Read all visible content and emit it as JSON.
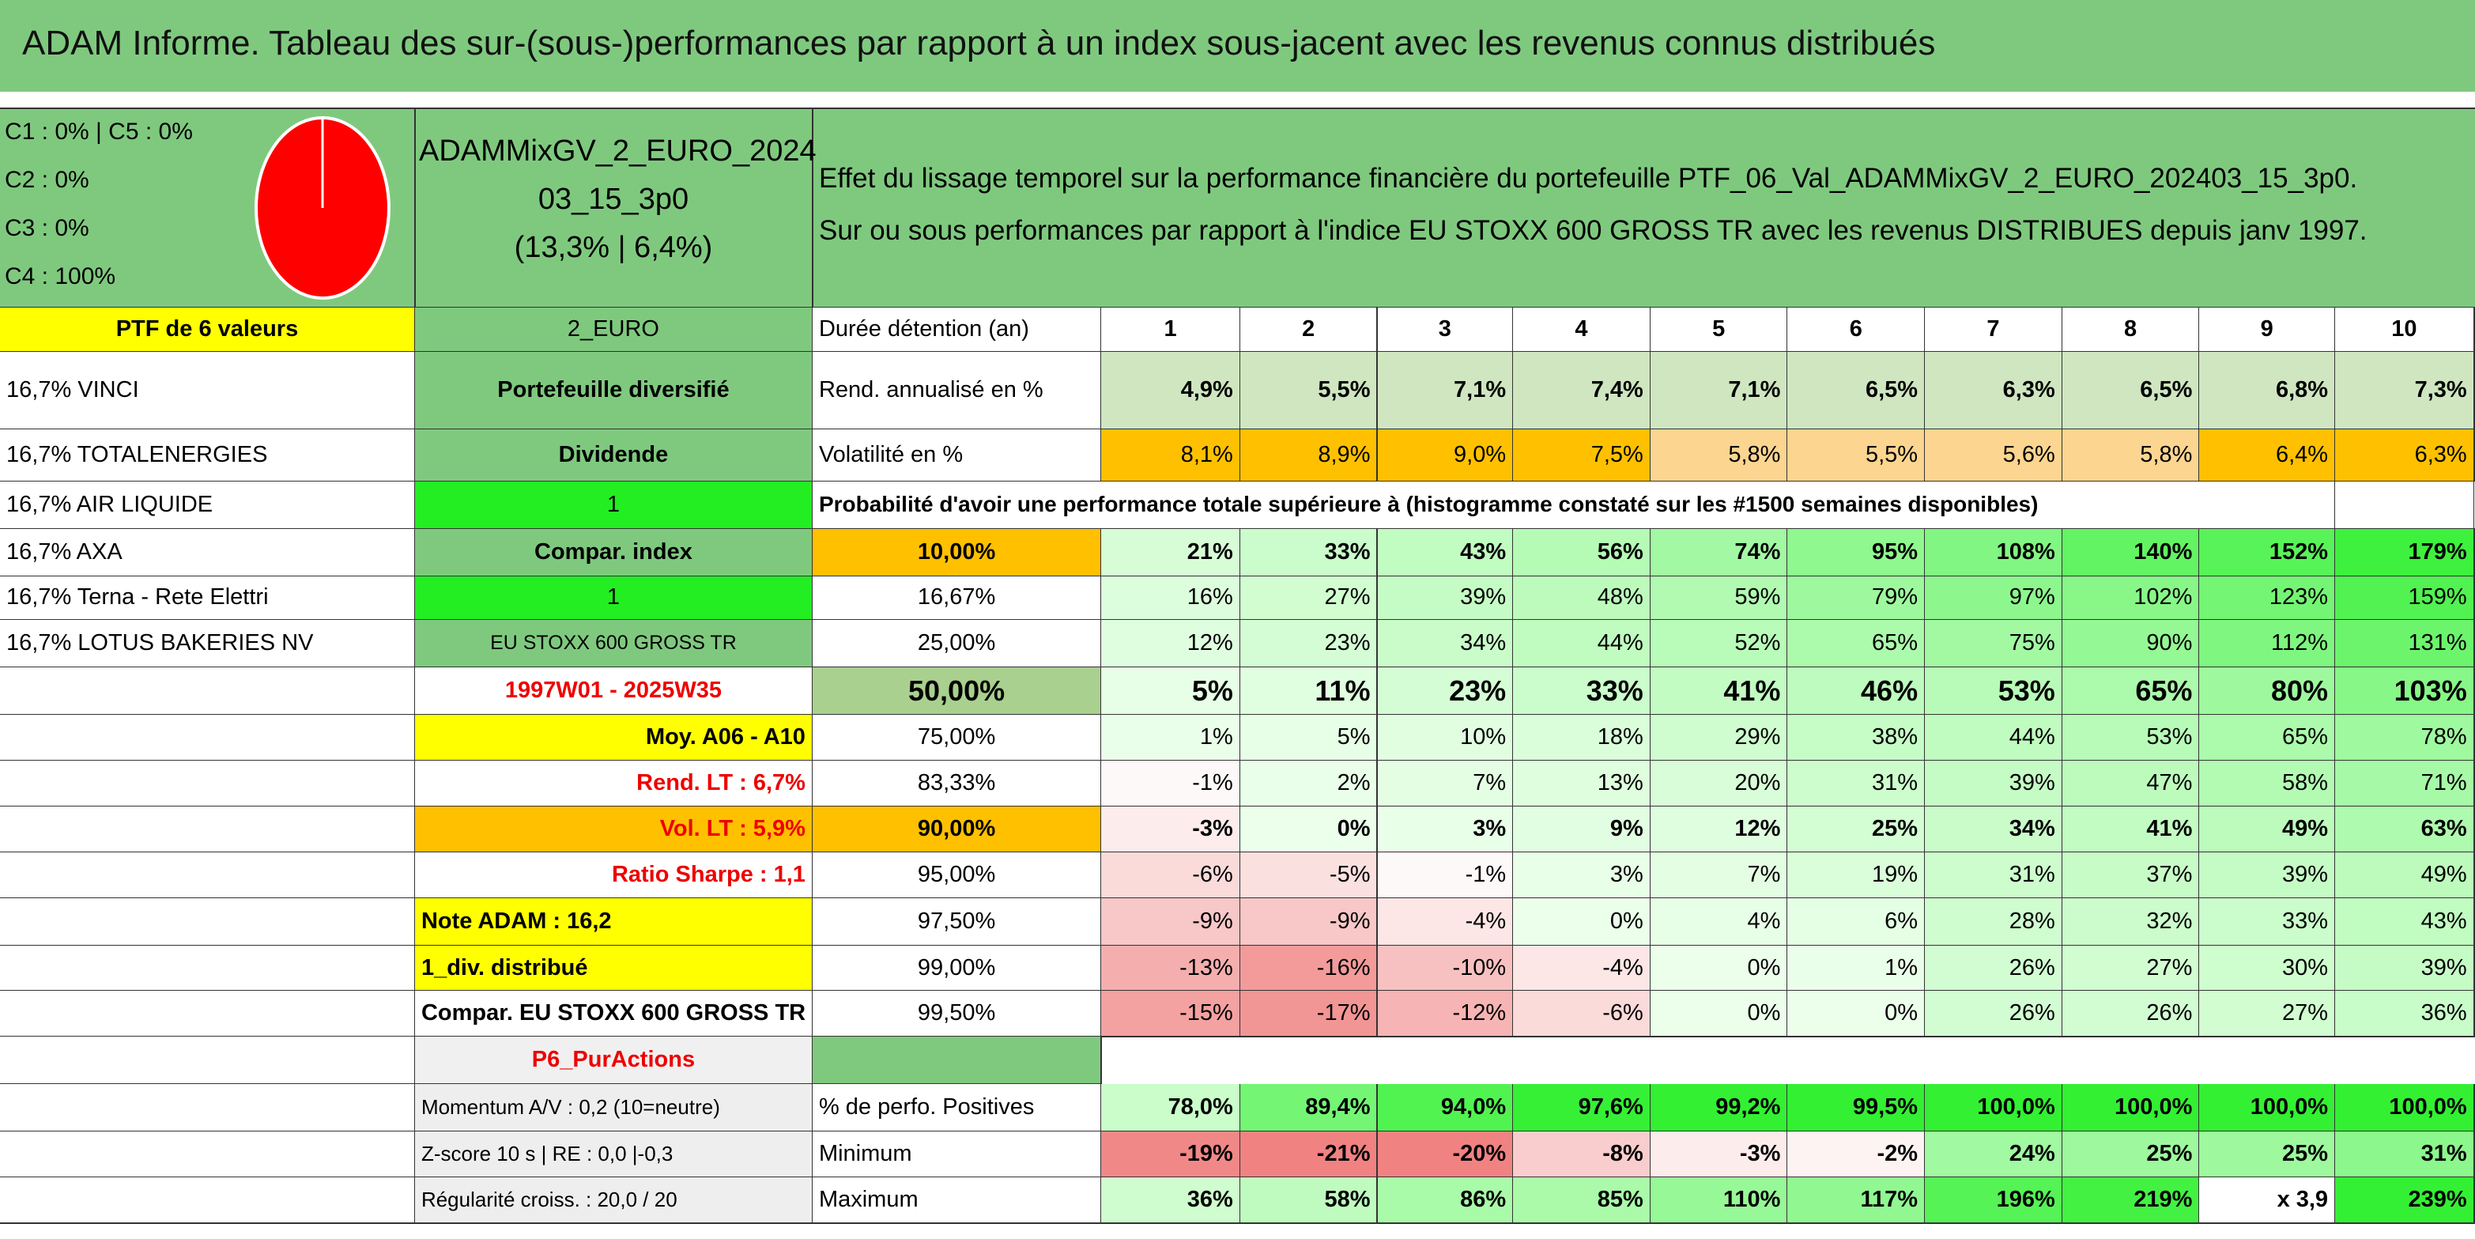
{
  "header": {
    "title": "ADAM Informe. Tableau des sur-(sous-)performances par rapport à un index sous-jacent avec les revenus connus distribués"
  },
  "summary": {
    "allocation": [
      "C1 : 0% | C5 : 0%",
      "C2 : 0%",
      "C3 : 0%",
      "C4 : 100%"
    ],
    "portfolio_name": [
      "ADAMMixGV_2_EURO_2024",
      "03_15_3p0",
      "(13,3% | 6,4%)"
    ],
    "description": [
      "Effet du lissage temporel sur la performance financière du portefeuille PTF_06_Val_ADAMMixGV_2_EURO_202403_15_3p0.",
      "Sur ou sous performances par rapport à l'indice EU STOXX 600 GROSS TR avec les revenus DISTRIBUES depuis janv 1997."
    ]
  },
  "holdings": {
    "title": "PTF de 6 valeurs",
    "items": [
      "16,7% VINCI",
      "16,7% TOTALENERGIES",
      "16,7% AIR LIQUIDE",
      "16,7% AXA",
      "16,7% Terna - Rete Elettri",
      "16,7% LOTUS BAKERIES NV"
    ]
  },
  "info": [
    "2_EURO",
    "Portefeuille diversifié",
    "Dividende",
    "1",
    "Compar. index",
    "1",
    "EU STOXX 600 GROSS TR",
    "1997W01 - 2025W35",
    "Moy. A06 - A10",
    "Rend. LT : 6,7%",
    "Vol. LT : 5,9%",
    "Ratio Sharpe : 1,1",
    "Note ADAM : 16,2",
    "1_div. distribué",
    "Compar. EU STOXX 600 GROSS TR",
    "P6_PurActions",
    "Momentum A/V : 0,2 (10=neutre)",
    "Z-score 10 s | RE : 0,0 |-0,3",
    "Régularité croiss. : 20,0 / 20"
  ],
  "table": {
    "durations_label": "Durée détention (an)",
    "durations": [
      1,
      2,
      3,
      4,
      5,
      6,
      7,
      8,
      9,
      10
    ],
    "rows": [
      {
        "label": "Rend. annualisé en %",
        "values": [
          "4,9%",
          "5,5%",
          "7,1%",
          "7,4%",
          "7,1%",
          "6,5%",
          "6,3%",
          "6,5%",
          "6,8%",
          "7,3%"
        ]
      },
      {
        "label": "Volatilité en %",
        "values": [
          "8,1%",
          "8,9%",
          "9,0%",
          "7,5%",
          "5,8%",
          "5,5%",
          "5,6%",
          "5,8%",
          "6,4%",
          "6,3%"
        ]
      }
    ],
    "probability_title": "Probabilité d'avoir une performance totale supérieure à (histogramme constaté sur les #1500 semaines disponibles)",
    "quantiles": [
      {
        "label": "10,00%",
        "values": [
          "21%",
          "33%",
          "43%",
          "56%",
          "74%",
          "95%",
          "108%",
          "140%",
          "152%",
          "179%"
        ]
      },
      {
        "label": "16,67%",
        "values": [
          "16%",
          "27%",
          "39%",
          "48%",
          "59%",
          "79%",
          "97%",
          "102%",
          "123%",
          "159%"
        ]
      },
      {
        "label": "25,00%",
        "values": [
          "12%",
          "23%",
          "34%",
          "44%",
          "52%",
          "65%",
          "75%",
          "90%",
          "112%",
          "131%"
        ]
      },
      {
        "label": "50,00%",
        "values": [
          "5%",
          "11%",
          "23%",
          "33%",
          "41%",
          "46%",
          "53%",
          "65%",
          "80%",
          "103%"
        ]
      },
      {
        "label": "75,00%",
        "values": [
          "1%",
          "5%",
          "10%",
          "18%",
          "29%",
          "38%",
          "44%",
          "53%",
          "65%",
          "78%"
        ]
      },
      {
        "label": "83,33%",
        "values": [
          "-1%",
          "2%",
          "7%",
          "13%",
          "20%",
          "31%",
          "39%",
          "47%",
          "58%",
          "71%"
        ]
      },
      {
        "label": "90,00%",
        "values": [
          "-3%",
          "0%",
          "3%",
          "9%",
          "12%",
          "25%",
          "34%",
          "41%",
          "49%",
          "63%"
        ]
      },
      {
        "label": "95,00%",
        "values": [
          "-6%",
          "-5%",
          "-1%",
          "3%",
          "7%",
          "19%",
          "31%",
          "37%",
          "39%",
          "49%"
        ]
      },
      {
        "label": "97,50%",
        "values": [
          "-9%",
          "-9%",
          "-4%",
          "0%",
          "4%",
          "6%",
          "28%",
          "32%",
          "33%",
          "43%"
        ]
      },
      {
        "label": "99,00%",
        "values": [
          "-13%",
          "-16%",
          "-10%",
          "-4%",
          "0%",
          "1%",
          "26%",
          "27%",
          "30%",
          "39%"
        ]
      },
      {
        "label": "99,50%",
        "values": [
          "-15%",
          "-17%",
          "-12%",
          "-6%",
          "0%",
          "0%",
          "26%",
          "26%",
          "27%",
          "36%"
        ]
      }
    ],
    "stats": [
      {
        "label": "% de perfo. Positives",
        "values": [
          "78,0%",
          "89,4%",
          "94,0%",
          "97,6%",
          "99,2%",
          "99,5%",
          "100,0%",
          "100,0%",
          "100,0%",
          "100,0%"
        ]
      },
      {
        "label": "Minimum",
        "values": [
          "-19%",
          "-21%",
          "-20%",
          "-8%",
          "-3%",
          "-2%",
          "24%",
          "25%",
          "25%",
          "31%"
        ]
      },
      {
        "label": "Maximum",
        "values": [
          "36%",
          "58%",
          "86%",
          "85%",
          "110%",
          "117%",
          "196%",
          "219%",
          "x 3,9",
          "239%"
        ]
      }
    ]
  }
}
